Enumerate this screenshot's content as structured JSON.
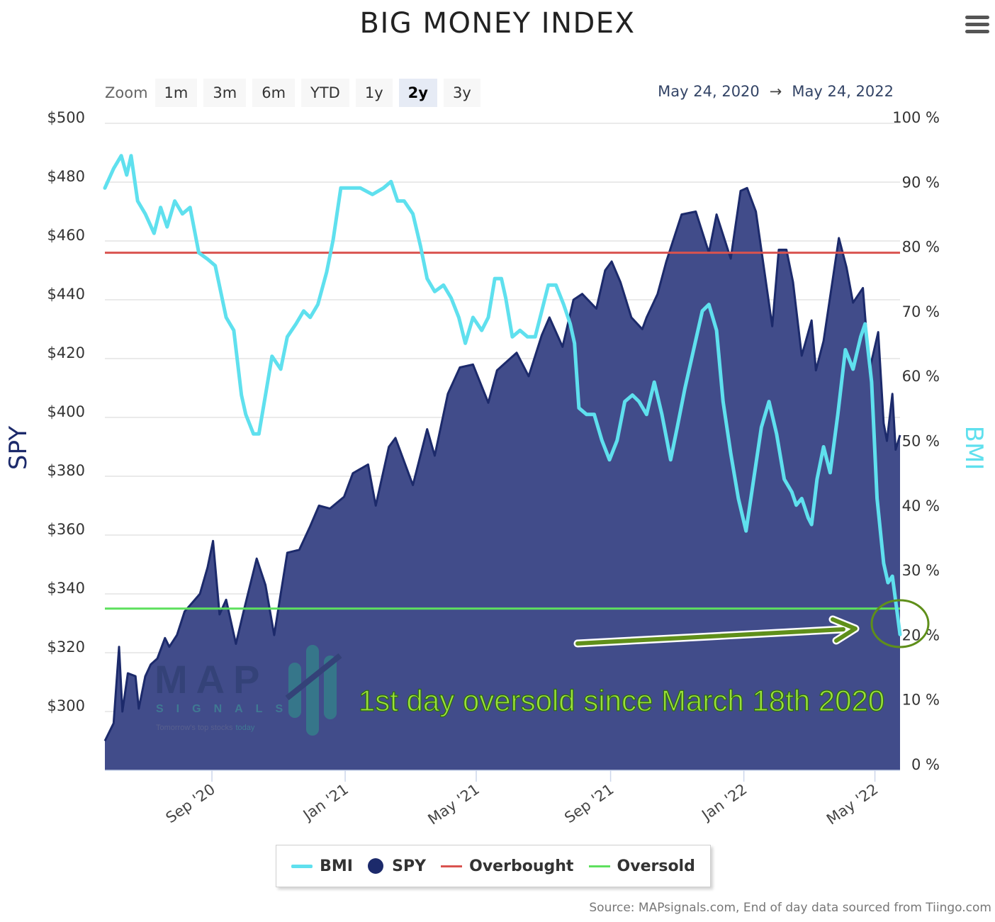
{
  "title": "BIG MONEY INDEX",
  "zoom": {
    "label": "Zoom",
    "buttons": [
      "1m",
      "3m",
      "6m",
      "YTD",
      "1y",
      "2y",
      "3y"
    ],
    "active": "2y"
  },
  "range": {
    "from": "May 24, 2020",
    "arrow": "→",
    "to": "May 24, 2022"
  },
  "legend": [
    {
      "name": "BMI",
      "color": "#5fe0ee",
      "symbol": "line"
    },
    {
      "name": "SPY",
      "color": "#1c2a6b",
      "symbol": "dot"
    },
    {
      "name": "Overbought",
      "color": "#d9534f",
      "symbol": "thin"
    },
    {
      "name": "Oversold",
      "color": "#5ee05e",
      "symbol": "thin"
    }
  ],
  "logo": {
    "brand": "MAP",
    "sub": "SIGNALS",
    "tagline_a": "Tomorrow's top stocks",
    "tagline_b": "today"
  },
  "annotation": "1st day oversold since March 18th 2020",
  "source": "Source: MAPsignals.com, End of day data sourced from Tiingo.com",
  "chart_data": {
    "type": "area",
    "title": "BIG MONEY INDEX",
    "y_left": {
      "label": "SPY",
      "min": 280,
      "max": 500,
      "ticks": [
        "$500",
        "$480",
        "$460",
        "$440",
        "$420",
        "$400",
        "$380",
        "$360",
        "$340",
        "$320",
        "$300"
      ]
    },
    "y_right": {
      "label": "BMI",
      "min": 0,
      "max": 100,
      "ticks": [
        "100 %",
        "90 %",
        "80 %",
        "70 %",
        "60 %",
        "50 %",
        "40 %",
        "30 %",
        "20 %",
        "10 %",
        "0 %"
      ]
    },
    "x_ticks": [
      {
        "label": "Sep '20",
        "date": "2020-09-01"
      },
      {
        "label": "Jan '21",
        "date": "2021-01-01"
      },
      {
        "label": "May '21",
        "date": "2021-05-01"
      },
      {
        "label": "Sep '21",
        "date": "2021-09-01"
      },
      {
        "label": "Jan '22",
        "date": "2022-01-01"
      },
      {
        "label": "May '22",
        "date": "2022-05-01"
      }
    ],
    "x_range": [
      "2020-05-26",
      "2022-05-24"
    ],
    "thresholds": {
      "overbought": 80,
      "oversold": 25
    },
    "series": [
      {
        "name": "SPY",
        "axis": "left",
        "color": "#1c2a6b",
        "fill": "#414c8a",
        "points": [
          [
            "2020-05-26",
            290
          ],
          [
            "2020-06-03",
            296
          ],
          [
            "2020-06-08",
            322
          ],
          [
            "2020-06-11",
            300
          ],
          [
            "2020-06-16",
            313
          ],
          [
            "2020-06-23",
            312
          ],
          [
            "2020-06-26",
            301
          ],
          [
            "2020-07-02",
            312
          ],
          [
            "2020-07-07",
            316
          ],
          [
            "2020-07-13",
            318
          ],
          [
            "2020-07-20",
            325
          ],
          [
            "2020-07-24",
            322
          ],
          [
            "2020-07-31",
            326
          ],
          [
            "2020-08-07",
            334
          ],
          [
            "2020-08-14",
            337
          ],
          [
            "2020-08-21",
            340
          ],
          [
            "2020-08-28",
            349
          ],
          [
            "2020-09-02",
            358
          ],
          [
            "2020-09-08",
            333
          ],
          [
            "2020-09-14",
            338
          ],
          [
            "2020-09-23",
            323
          ],
          [
            "2020-09-30",
            334
          ],
          [
            "2020-10-12",
            352
          ],
          [
            "2020-10-20",
            343
          ],
          [
            "2020-10-28",
            326
          ],
          [
            "2020-11-03",
            340
          ],
          [
            "2020-11-09",
            354
          ],
          [
            "2020-11-20",
            355
          ],
          [
            "2020-11-30",
            363
          ],
          [
            "2020-12-08",
            370
          ],
          [
            "2020-12-18",
            369
          ],
          [
            "2020-12-31",
            373
          ],
          [
            "2021-01-08",
            381
          ],
          [
            "2021-01-22",
            384
          ],
          [
            "2021-01-29",
            370
          ],
          [
            "2021-02-10",
            390
          ],
          [
            "2021-02-16",
            393
          ],
          [
            "2021-03-04",
            377
          ],
          [
            "2021-03-17",
            396
          ],
          [
            "2021-03-24",
            387
          ],
          [
            "2021-04-05",
            408
          ],
          [
            "2021-04-16",
            417
          ],
          [
            "2021-04-28",
            418
          ],
          [
            "2021-05-12",
            405
          ],
          [
            "2021-05-20",
            416
          ],
          [
            "2021-06-07",
            422
          ],
          [
            "2021-06-18",
            414
          ],
          [
            "2021-06-30",
            428
          ],
          [
            "2021-07-07",
            434
          ],
          [
            "2021-07-19",
            424
          ],
          [
            "2021-07-29",
            440
          ],
          [
            "2021-08-06",
            442
          ],
          [
            "2021-08-19",
            437
          ],
          [
            "2021-08-27",
            450
          ],
          [
            "2021-09-02",
            453
          ],
          [
            "2021-09-10",
            446
          ],
          [
            "2021-09-20",
            434
          ],
          [
            "2021-09-30",
            430
          ],
          [
            "2021-10-04",
            434
          ],
          [
            "2021-10-14",
            442
          ],
          [
            "2021-10-22",
            453
          ],
          [
            "2021-11-05",
            469
          ],
          [
            "2021-11-18",
            470
          ],
          [
            "2021-11-30",
            456
          ],
          [
            "2021-12-07",
            469
          ],
          [
            "2021-12-20",
            454
          ],
          [
            "2021-12-29",
            477
          ],
          [
            "2022-01-04",
            478
          ],
          [
            "2022-01-12",
            470
          ],
          [
            "2022-01-27",
            431
          ],
          [
            "2022-02-02",
            457
          ],
          [
            "2022-02-09",
            457
          ],
          [
            "2022-02-15",
            446
          ],
          [
            "2022-02-23",
            421
          ],
          [
            "2022-03-04",
            433
          ],
          [
            "2022-03-08",
            416
          ],
          [
            "2022-03-15",
            426
          ],
          [
            "2022-03-29",
            461
          ],
          [
            "2022-04-05",
            451
          ],
          [
            "2022-04-11",
            439
          ],
          [
            "2022-04-20",
            444
          ],
          [
            "2022-04-26",
            416
          ],
          [
            "2022-05-04",
            429
          ],
          [
            "2022-05-09",
            398
          ],
          [
            "2022-05-12",
            392
          ],
          [
            "2022-05-17",
            408
          ],
          [
            "2022-05-20",
            389
          ],
          [
            "2022-05-24",
            394
          ]
        ]
      },
      {
        "name": "BMI",
        "axis": "right",
        "color": "#5fe0ee",
        "points": [
          [
            "2020-05-26",
            90
          ],
          [
            "2020-06-03",
            93
          ],
          [
            "2020-06-10",
            95
          ],
          [
            "2020-06-15",
            92
          ],
          [
            "2020-06-19",
            95
          ],
          [
            "2020-06-25",
            88
          ],
          [
            "2020-07-02",
            86
          ],
          [
            "2020-07-10",
            83
          ],
          [
            "2020-07-16",
            87
          ],
          [
            "2020-07-22",
            84
          ],
          [
            "2020-07-29",
            88
          ],
          [
            "2020-08-05",
            86
          ],
          [
            "2020-08-12",
            87
          ],
          [
            "2020-08-20",
            80
          ],
          [
            "2020-08-28",
            79
          ],
          [
            "2020-09-04",
            78
          ],
          [
            "2020-09-14",
            70
          ],
          [
            "2020-09-21",
            68
          ],
          [
            "2020-09-28",
            58
          ],
          [
            "2020-10-02",
            55
          ],
          [
            "2020-10-09",
            52
          ],
          [
            "2020-10-14",
            52
          ],
          [
            "2020-10-20",
            58
          ],
          [
            "2020-10-26",
            64
          ],
          [
            "2020-11-03",
            62
          ],
          [
            "2020-11-09",
            67
          ],
          [
            "2020-11-17",
            69
          ],
          [
            "2020-11-24",
            71
          ],
          [
            "2020-11-30",
            70
          ],
          [
            "2020-12-07",
            72
          ],
          [
            "2020-12-15",
            77
          ],
          [
            "2020-12-21",
            82
          ],
          [
            "2020-12-28",
            90
          ],
          [
            "2021-01-08",
            90
          ],
          [
            "2021-01-15",
            90
          ],
          [
            "2021-01-26",
            89
          ],
          [
            "2021-02-05",
            90
          ],
          [
            "2021-02-12",
            91
          ],
          [
            "2021-02-18",
            88
          ],
          [
            "2021-02-24",
            88
          ],
          [
            "2021-03-04",
            86
          ],
          [
            "2021-03-11",
            81
          ],
          [
            "2021-03-17",
            76
          ],
          [
            "2021-03-24",
            74
          ],
          [
            "2021-04-01",
            75
          ],
          [
            "2021-04-08",
            73
          ],
          [
            "2021-04-15",
            70
          ],
          [
            "2021-04-21",
            66
          ],
          [
            "2021-04-28",
            70
          ],
          [
            "2021-05-06",
            68
          ],
          [
            "2021-05-12",
            70
          ],
          [
            "2021-05-18",
            76
          ],
          [
            "2021-05-24",
            76
          ],
          [
            "2021-05-28",
            73
          ],
          [
            "2021-06-03",
            67
          ],
          [
            "2021-06-10",
            68
          ],
          [
            "2021-06-17",
            67
          ],
          [
            "2021-06-24",
            67
          ],
          [
            "2021-06-30",
            71
          ],
          [
            "2021-07-06",
            75
          ],
          [
            "2021-07-13",
            75
          ],
          [
            "2021-07-20",
            72
          ],
          [
            "2021-07-26",
            69
          ],
          [
            "2021-07-30",
            66
          ],
          [
            "2021-08-03",
            56
          ],
          [
            "2021-08-10",
            55
          ],
          [
            "2021-08-17",
            55
          ],
          [
            "2021-08-24",
            51
          ],
          [
            "2021-08-31",
            48
          ],
          [
            "2021-09-07",
            51
          ],
          [
            "2021-09-14",
            57
          ],
          [
            "2021-09-21",
            58
          ],
          [
            "2021-09-27",
            57
          ],
          [
            "2021-10-04",
            55
          ],
          [
            "2021-10-11",
            60
          ],
          [
            "2021-10-18",
            55
          ],
          [
            "2021-10-26",
            48
          ],
          [
            "2021-11-01",
            53
          ],
          [
            "2021-11-08",
            59
          ],
          [
            "2021-11-16",
            65
          ],
          [
            "2021-11-24",
            71
          ],
          [
            "2021-11-30",
            72
          ],
          [
            "2021-12-07",
            68
          ],
          [
            "2021-12-13",
            57
          ],
          [
            "2021-12-20",
            49
          ],
          [
            "2021-12-27",
            42
          ],
          [
            "2022-01-03",
            37
          ],
          [
            "2022-01-10",
            45
          ],
          [
            "2022-01-17",
            53
          ],
          [
            "2022-01-24",
            57
          ],
          [
            "2022-01-31",
            52
          ],
          [
            "2022-02-07",
            45
          ],
          [
            "2022-02-14",
            43
          ],
          [
            "2022-02-18",
            41
          ],
          [
            "2022-02-23",
            42
          ],
          [
            "2022-03-01",
            39
          ],
          [
            "2022-03-04",
            38
          ],
          [
            "2022-03-09",
            45
          ],
          [
            "2022-03-15",
            50
          ],
          [
            "2022-03-21",
            46
          ],
          [
            "2022-03-28",
            55
          ],
          [
            "2022-04-04",
            65
          ],
          [
            "2022-04-11",
            62
          ],
          [
            "2022-04-18",
            67
          ],
          [
            "2022-04-22",
            69
          ],
          [
            "2022-04-28",
            60
          ],
          [
            "2022-05-03",
            42
          ],
          [
            "2022-05-09",
            32
          ],
          [
            "2022-05-13",
            29
          ],
          [
            "2022-05-17",
            30
          ],
          [
            "2022-05-24",
            21
          ]
        ]
      }
    ]
  }
}
